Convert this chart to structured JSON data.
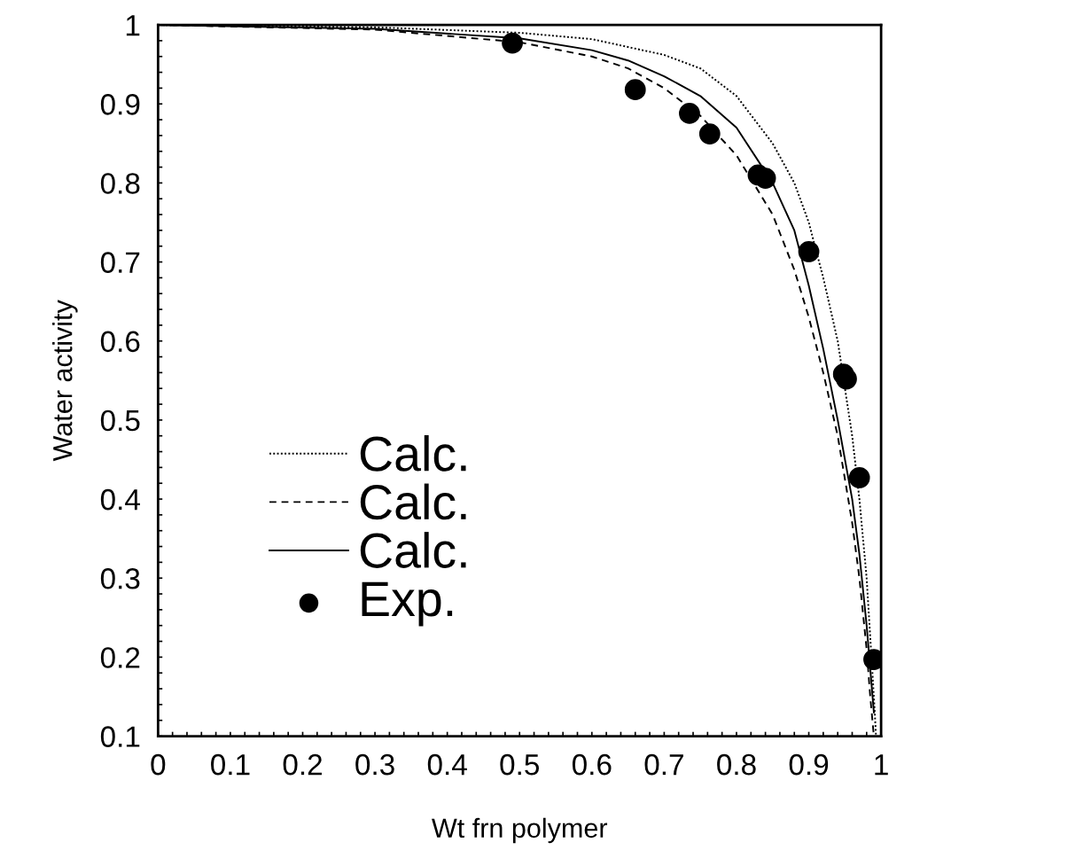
{
  "chart_data": {
    "type": "line",
    "xlabel": "Wt frn polymer",
    "ylabel": "Water activity",
    "xlim": [
      0,
      1
    ],
    "ylim": [
      0.1,
      1
    ],
    "xticks": [
      0,
      {
        "value": 0.02,
        "label": null
      },
      {
        "value": 0.04,
        "label": null
      },
      {
        "value": 0.06,
        "label": null
      },
      {
        "value": 0.08,
        "label": null
      },
      0.1,
      {
        "value": 0.12,
        "label": null
      },
      {
        "value": 0.14,
        "label": null
      },
      {
        "value": 0.16,
        "label": null
      },
      {
        "value": 0.18,
        "label": null
      },
      0.2,
      {
        "value": 0.22,
        "label": null
      },
      {
        "value": 0.24,
        "label": null
      },
      {
        "value": 0.26,
        "label": null
      },
      {
        "value": 0.28,
        "label": null
      },
      0.3,
      {
        "value": 0.32,
        "label": null
      },
      {
        "value": 0.34,
        "label": null
      },
      {
        "value": 0.36,
        "label": null
      },
      {
        "value": 0.38,
        "label": null
      },
      0.4,
      {
        "value": 0.42,
        "label": null
      },
      {
        "value": 0.44,
        "label": null
      },
      {
        "value": 0.46,
        "label": null
      },
      {
        "value": 0.48,
        "label": null
      },
      0.5,
      {
        "value": 0.52,
        "label": null
      },
      {
        "value": 0.54,
        "label": null
      },
      {
        "value": 0.56,
        "label": null
      },
      {
        "value": 0.58,
        "label": null
      },
      0.6,
      {
        "value": 0.62,
        "label": null
      },
      {
        "value": 0.64,
        "label": null
      },
      {
        "value": 0.66,
        "label": null
      },
      {
        "value": 0.68,
        "label": null
      },
      0.7,
      {
        "value": 0.72,
        "label": null
      },
      {
        "value": 0.74,
        "label": null
      },
      {
        "value": 0.76,
        "label": null
      },
      {
        "value": 0.78,
        "label": null
      },
      0.8,
      {
        "value": 0.82,
        "label": null
      },
      {
        "value": 0.84,
        "label": null
      },
      {
        "value": 0.86,
        "label": null
      },
      {
        "value": 0.88,
        "label": null
      },
      0.9,
      {
        "value": 0.92,
        "label": null
      },
      {
        "value": 0.94,
        "label": null
      },
      {
        "value": 0.96,
        "label": null
      },
      {
        "value": 0.98,
        "label": null
      },
      1
    ],
    "yticks": [
      0.1,
      {
        "value": 0.12,
        "label": null
      },
      {
        "value": 0.14,
        "label": null
      },
      {
        "value": 0.16,
        "label": null
      },
      {
        "value": 0.18,
        "label": null
      },
      0.2,
      {
        "value": 0.22,
        "label": null
      },
      {
        "value": 0.24,
        "label": null
      },
      {
        "value": 0.26,
        "label": null
      },
      {
        "value": 0.28,
        "label": null
      },
      0.3,
      {
        "value": 0.32,
        "label": null
      },
      {
        "value": 0.34,
        "label": null
      },
      {
        "value": 0.36,
        "label": null
      },
      {
        "value": 0.38,
        "label": null
      },
      0.4,
      {
        "value": 0.42,
        "label": null
      },
      {
        "value": 0.44,
        "label": null
      },
      {
        "value": 0.46,
        "label": null
      },
      {
        "value": 0.48,
        "label": null
      },
      0.5,
      {
        "value": 0.52,
        "label": null
      },
      {
        "value": 0.54,
        "label": null
      },
      {
        "value": 0.56,
        "label": null
      },
      {
        "value": 0.58,
        "label": null
      },
      0.6,
      {
        "value": 0.62,
        "label": null
      },
      {
        "value": 0.64,
        "label": null
      },
      {
        "value": 0.66,
        "label": null
      },
      {
        "value": 0.68,
        "label": null
      },
      0.7,
      {
        "value": 0.72,
        "label": null
      },
      {
        "value": 0.74,
        "label": null
      },
      {
        "value": 0.76,
        "label": null
      },
      {
        "value": 0.78,
        "label": null
      },
      0.8,
      {
        "value": 0.82,
        "label": null
      },
      {
        "value": 0.84,
        "label": null
      },
      {
        "value": 0.86,
        "label": null
      },
      {
        "value": 0.88,
        "label": null
      },
      0.9,
      {
        "value": 0.92,
        "label": null
      },
      {
        "value": 0.94,
        "label": null
      },
      {
        "value": 0.96,
        "label": null
      },
      {
        "value": 0.98,
        "label": null
      },
      1
    ],
    "grid": false,
    "legend": "bottom left",
    "series": [
      {
        "name": "Calc.",
        "line_style": "dotted",
        "color": "#000000",
        "x": [
          0,
          0.3,
          0.5,
          0.6,
          0.7,
          0.75,
          0.8,
          0.85,
          0.88,
          0.9,
          0.92,
          0.94,
          0.96,
          0.97,
          0.98,
          0.99,
          0.993
        ],
        "values": [
          1,
          0.997,
          0.99,
          0.982,
          0.962,
          0.945,
          0.91,
          0.85,
          0.8,
          0.75,
          0.68,
          0.6,
          0.48,
          0.4,
          0.3,
          0.15,
          0.1
        ]
      },
      {
        "name": "Calc.",
        "line_style": "dashed",
        "color": "#000000",
        "x": [
          0,
          0.3,
          0.5,
          0.6,
          0.65,
          0.7,
          0.75,
          0.8,
          0.85,
          0.88,
          0.9,
          0.92,
          0.94,
          0.96,
          0.97,
          0.98,
          0.985,
          0.99
        ],
        "values": [
          1,
          0.994,
          0.978,
          0.96,
          0.945,
          0.92,
          0.885,
          0.835,
          0.76,
          0.69,
          0.63,
          0.56,
          0.48,
          0.37,
          0.3,
          0.21,
          0.15,
          0.1
        ]
      },
      {
        "name": "Calc.",
        "line_style": "solid",
        "color": "#000000",
        "x": [
          0,
          0.3,
          0.5,
          0.6,
          0.65,
          0.7,
          0.75,
          0.8,
          0.85,
          0.88,
          0.9,
          0.92,
          0.94,
          0.96,
          0.97,
          0.98,
          0.99
        ],
        "values": [
          1,
          0.995,
          0.983,
          0.968,
          0.955,
          0.935,
          0.91,
          0.87,
          0.8,
          0.74,
          0.67,
          0.59,
          0.5,
          0.4,
          0.33,
          0.24,
          0.13
        ]
      },
      {
        "name": "Exp.",
        "type": "scatter",
        "marker": "circle",
        "color": "#000000",
        "x": [
          0.49,
          0.66,
          0.735,
          0.763,
          0.83,
          0.84,
          0.9,
          0.948,
          0.952,
          0.97,
          0.99
        ],
        "values": [
          0.977,
          0.918,
          0.888,
          0.862,
          0.81,
          0.806,
          0.713,
          0.558,
          0.552,
          0.427,
          0.197
        ]
      }
    ]
  }
}
